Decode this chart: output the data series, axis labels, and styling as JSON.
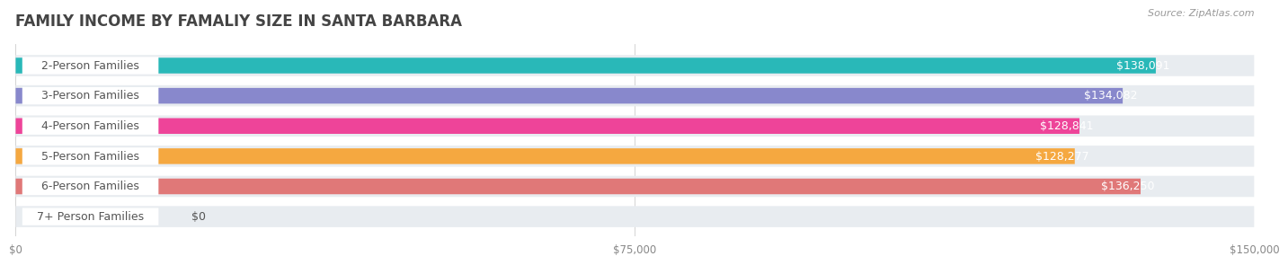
{
  "title": "FAMILY INCOME BY FAMALIY SIZE IN SANTA BARBARA",
  "source": "Source: ZipAtlas.com",
  "categories": [
    "2-Person Families",
    "3-Person Families",
    "4-Person Families",
    "5-Person Families",
    "6-Person Families",
    "7+ Person Families"
  ],
  "values": [
    138091,
    134082,
    128841,
    128277,
    136250,
    0
  ],
  "bar_colors": [
    "#29b8b8",
    "#8888cc",
    "#ee4499",
    "#f5a840",
    "#e07878",
    "#a8c8e8"
  ],
  "value_labels": [
    "$138,091",
    "$134,082",
    "$128,841",
    "$128,277",
    "$136,250",
    "$0"
  ],
  "xlim": [
    0,
    150000
  ],
  "xticks": [
    0,
    75000,
    150000
  ],
  "xticklabels": [
    "$0",
    "$75,000",
    "$150,000"
  ],
  "background_color": "#ffffff",
  "bar_bg_color": "#e8ecf0",
  "title_fontsize": 12,
  "source_fontsize": 8,
  "label_fontsize": 9,
  "value_fontsize": 9
}
